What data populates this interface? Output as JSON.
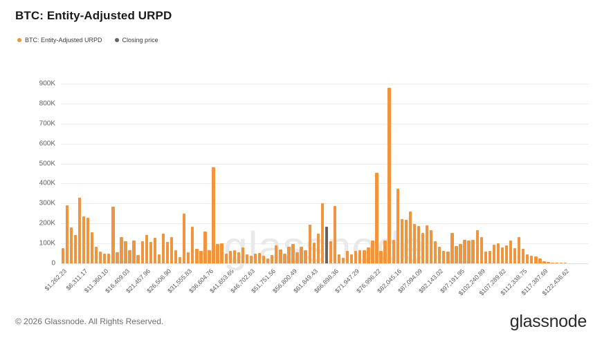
{
  "header": {
    "title": "BTC: Entity-Adjusted URPD"
  },
  "legend": {
    "items": [
      {
        "label": "BTC: Entity-Adjusted URPD",
        "color": "#F0943E"
      },
      {
        "label": "Closing price",
        "color": "#636363"
      }
    ]
  },
  "watermark": "glassnode",
  "footer": {
    "copyright": "© 2026 Glassnode. All Rights Reserved.",
    "logo_text": "glassnode"
  },
  "chart_data": {
    "type": "bar",
    "title": "BTC: Entity-Adjusted URPD",
    "ylabel": "",
    "xlabel": "",
    "ylim": [
      0,
      900000
    ],
    "grid": true,
    "legend_position": "top-left",
    "y_ticks": [
      "900K",
      "800K",
      "700K",
      "600K",
      "500K",
      "400K",
      "300K",
      "200K",
      "100K",
      "0"
    ],
    "x_tick_every": 5,
    "x_tick_labels": [
      "$1,262.23",
      "$6,311.17",
      "$11,360.10",
      "$16,409.03",
      "$21,457.96",
      "$26,506.90",
      "$31,555.83",
      "$36,604.76",
      "$41,653.69",
      "$46,702.63",
      "$51,751.56",
      "$56,800.49",
      "$61,849.43",
      "$66,898.36",
      "$71,947.29",
      "$76,996.22",
      "$82,045.16",
      "$87,094.09",
      "$92,143.02",
      "$97,191.95",
      "$102,240.89",
      "$107,289.82",
      "$112,338.75",
      "$117,387.69",
      "$122,436.62"
    ],
    "values_thousands": [
      77,
      292,
      181,
      141,
      330,
      235,
      229,
      156,
      84,
      60,
      47,
      47,
      283,
      55,
      132,
      110,
      66,
      113,
      40,
      112,
      141,
      107,
      127,
      44,
      148,
      107,
      130,
      67,
      32,
      251,
      55,
      182,
      73,
      61,
      159,
      67,
      482,
      96,
      101,
      50,
      61,
      67,
      55,
      78,
      44,
      38,
      47,
      52,
      38,
      24,
      40,
      90,
      70,
      50,
      84,
      96,
      55,
      84,
      65,
      194,
      104,
      149,
      300,
      182,
      110,
      286,
      44,
      27,
      61,
      44,
      61,
      67,
      65,
      78,
      115,
      453,
      61,
      113,
      878,
      119,
      373,
      223,
      217,
      260,
      197,
      186,
      151,
      190,
      167,
      110,
      82,
      63,
      59,
      151,
      87,
      98,
      119,
      113,
      119,
      167,
      133,
      59,
      63,
      93,
      100,
      78,
      90,
      113,
      76,
      133,
      73,
      44,
      38,
      36,
      24,
      9,
      6,
      3,
      2,
      1,
      1
    ],
    "closing_price_bar_index": 63,
    "bar_color": "#F0943E",
    "closing_bar_color": "#636363",
    "gridline_color": "#ececec"
  }
}
